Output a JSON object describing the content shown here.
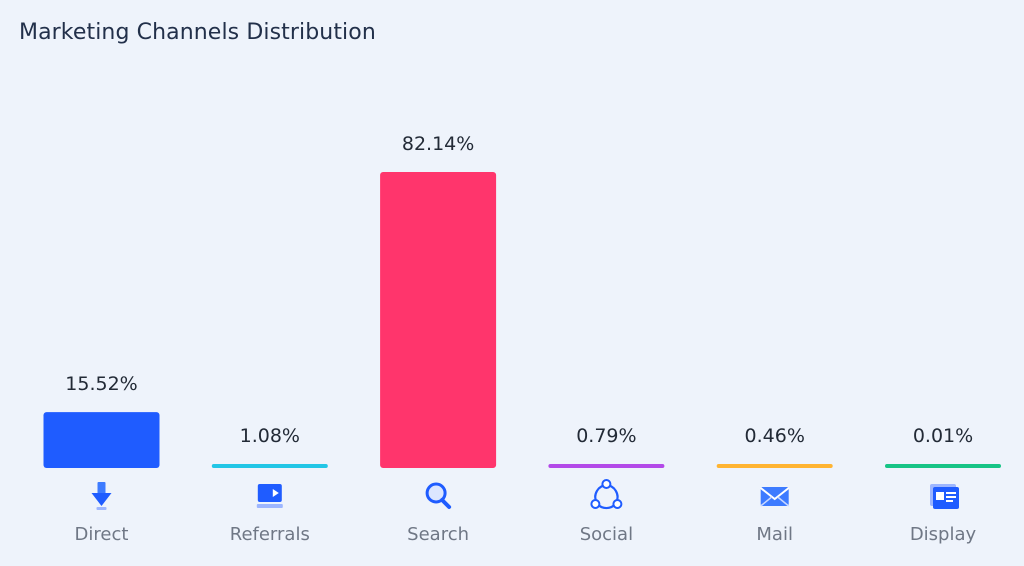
{
  "chart_data": {
    "type": "bar",
    "title": "Marketing Channels Distribution",
    "categories": [
      "Direct",
      "Referrals",
      "Search",
      "Social",
      "Mail",
      "Display"
    ],
    "values": [
      15.52,
      1.08,
      82.14,
      0.79,
      0.46,
      0.01
    ],
    "value_labels": [
      "15.52%",
      "1.08%",
      "82.14%",
      "0.79%",
      "0.46%",
      "0.01%"
    ],
    "colors": [
      "#1f5cff",
      "#22c6e6",
      "#ff356c",
      "#b349e8",
      "#ffb432",
      "#17c486"
    ],
    "icons": [
      "arrow-down-icon",
      "referral-arrow-icon",
      "magnifier-icon",
      "share-nodes-icon",
      "envelope-icon",
      "display-window-icon"
    ],
    "ylim": [
      0,
      82.14
    ],
    "grid": false
  }
}
